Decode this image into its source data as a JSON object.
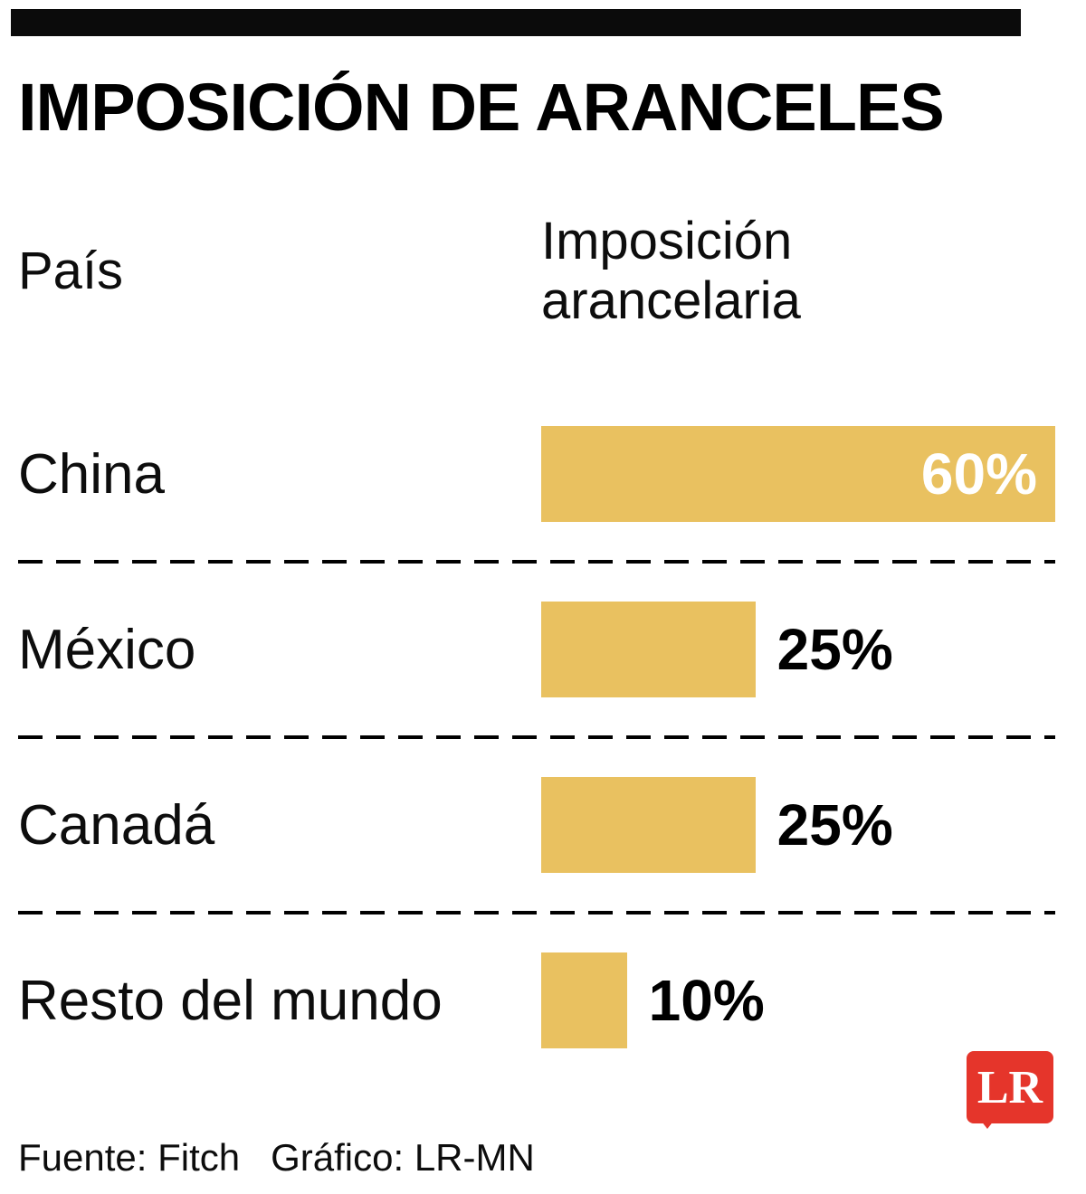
{
  "chart_data": {
    "type": "bar",
    "orientation": "horizontal",
    "title": "IMPOSICIÓN DE ARANCELES",
    "col_headers": {
      "country": "País",
      "value": "Imposición arancelaria"
    },
    "categories": [
      "China",
      "México",
      "Canadá",
      "Resto del mundo"
    ],
    "values": [
      60,
      25,
      25,
      10
    ],
    "value_labels": [
      "60%",
      "25%",
      "25%",
      "10%"
    ],
    "max_value": 60,
    "unit": "%",
    "bar_color": "#E9C160",
    "grid": false,
    "legend": false
  },
  "footer": {
    "source": "Fuente: Fitch",
    "credit": "Gráfico: LR-MN"
  },
  "logo": {
    "text": "LR",
    "color": "#E5352B"
  }
}
